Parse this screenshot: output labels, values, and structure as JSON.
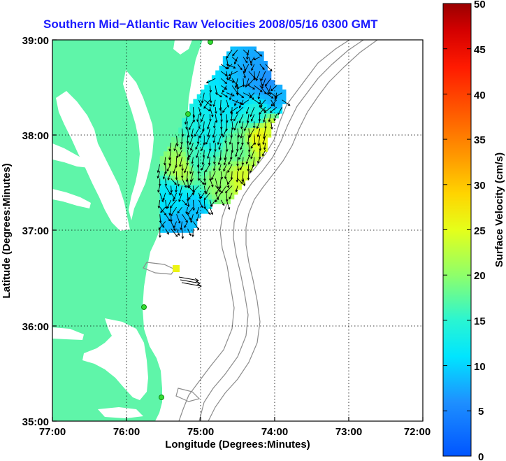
{
  "title": "Southern Mid−Atlantic Raw Velocities 2008/05/16 0300 GMT",
  "x_axis": {
    "label": "Longitude (Degrees:Minutes)",
    "ticks": [
      "77:00",
      "76:00",
      "75:00",
      "74:00",
      "73:00",
      "72:00"
    ]
  },
  "y_axis": {
    "label": "Latitude (Degrees:Minutes)",
    "ticks": [
      "39:00",
      "38:00",
      "37:00",
      "36:00",
      "35:00"
    ]
  },
  "colorbar": {
    "label": "Surface Velocity (cm/s)",
    "ticks": [
      "50",
      "45",
      "40",
      "35",
      "30",
      "25",
      "20",
      "15",
      "10",
      "5",
      "0"
    ],
    "range": [
      0,
      50
    ],
    "colormap": "jet"
  },
  "colors": {
    "land": "#5ff5a9",
    "ocean": "#ffffff",
    "title": "#1a1aff",
    "bathymetry": "#8c8c8c",
    "stations": "#33dd33"
  },
  "chart_data": {
    "type": "heatmap",
    "xlim": [
      -77,
      -72
    ],
    "ylim": [
      35,
      39
    ],
    "grid": true,
    "velocity_cells_cm_s": [
      {
        "lon": -74.3,
        "lat": 38.6,
        "v": 7
      },
      {
        "lon": -74.1,
        "lat": 38.55,
        "v": 6
      },
      {
        "lon": -74.5,
        "lat": 38.45,
        "v": 9
      },
      {
        "lon": -74.0,
        "lat": 38.4,
        "v": 8
      },
      {
        "lon": -74.75,
        "lat": 38.3,
        "v": 12
      },
      {
        "lon": -74.25,
        "lat": 38.2,
        "v": 14
      },
      {
        "lon": -74.05,
        "lat": 38.05,
        "v": 24
      },
      {
        "lon": -74.2,
        "lat": 38.0,
        "v": 26
      },
      {
        "lon": -74.9,
        "lat": 38.0,
        "v": 13
      },
      {
        "lon": -74.5,
        "lat": 37.85,
        "v": 18
      },
      {
        "lon": -75.05,
        "lat": 37.75,
        "v": 16
      },
      {
        "lon": -75.25,
        "lat": 37.65,
        "v": 22
      },
      {
        "lon": -74.45,
        "lat": 37.55,
        "v": 24
      },
      {
        "lon": -74.75,
        "lat": 37.5,
        "v": 20
      },
      {
        "lon": -75.35,
        "lat": 37.35,
        "v": 11
      },
      {
        "lon": -75.1,
        "lat": 37.2,
        "v": 9
      },
      {
        "lon": -75.3,
        "lat": 37.05,
        "v": 8
      },
      {
        "lon": -75.33,
        "lat": 36.6,
        "v": 26
      }
    ]
  }
}
